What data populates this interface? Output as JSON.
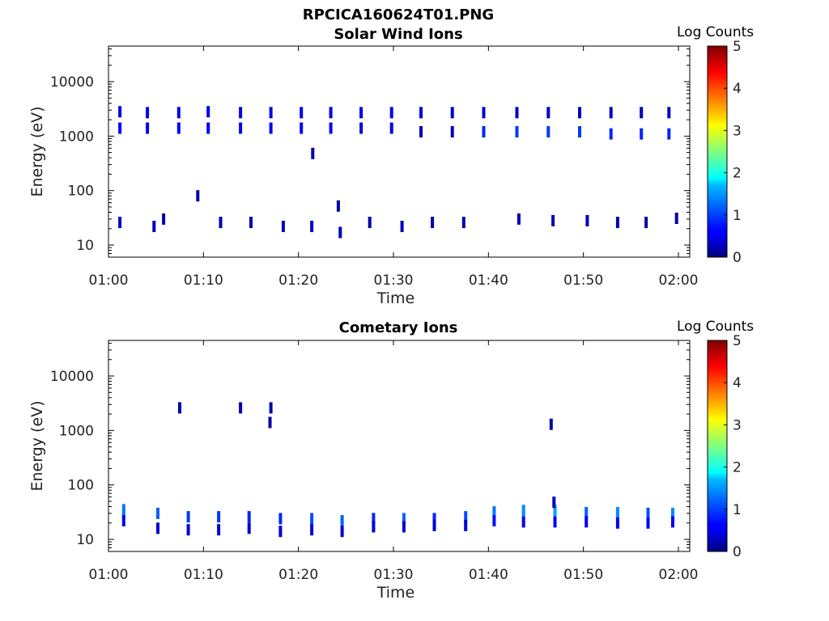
{
  "figure": {
    "title": "RPCICA160624T01.PNG"
  },
  "colorbar": {
    "label": "Log Counts",
    "range": [
      0,
      5
    ],
    "ticks": [
      "0",
      "1",
      "2",
      "3",
      "4",
      "5"
    ],
    "colormap": "jet"
  },
  "chart_data": [
    {
      "type": "heatmap",
      "title": "Solar Wind Ions",
      "xlabel": "Time",
      "ylabel": "Energy (eV)",
      "yscale": "log",
      "xlim": [
        "01:00",
        "02:00"
      ],
      "ylim": [
        6,
        45000
      ],
      "xticks": [
        "01:00",
        "01:10",
        "01:20",
        "01:30",
        "01:40",
        "01:50",
        "02:00"
      ],
      "yticks": [
        "10",
        "100",
        "1000",
        "10000"
      ],
      "colorbar": {
        "label": "Log Counts",
        "range": [
          0,
          5
        ]
      },
      "points": [
        {
          "t": 1.2,
          "e": 2800,
          "v": 0.5
        },
        {
          "t": 1.2,
          "e": 1400,
          "v": 0.6
        },
        {
          "t": 4.1,
          "e": 2700,
          "v": 0.5
        },
        {
          "t": 4.1,
          "e": 1400,
          "v": 0.6
        },
        {
          "t": 7.4,
          "e": 2700,
          "v": 0.5
        },
        {
          "t": 7.4,
          "e": 1400,
          "v": 0.6
        },
        {
          "t": 10.5,
          "e": 2800,
          "v": 0.5
        },
        {
          "t": 10.5,
          "e": 1400,
          "v": 0.6
        },
        {
          "t": 13.9,
          "e": 2700,
          "v": 0.5
        },
        {
          "t": 13.9,
          "e": 1400,
          "v": 0.6
        },
        {
          "t": 17.1,
          "e": 2700,
          "v": 0.5
        },
        {
          "t": 17.1,
          "e": 1400,
          "v": 0.6
        },
        {
          "t": 20.3,
          "e": 2700,
          "v": 0.5
        },
        {
          "t": 20.3,
          "e": 1400,
          "v": 0.6
        },
        {
          "t": 23.4,
          "e": 2700,
          "v": 0.5
        },
        {
          "t": 23.4,
          "e": 1400,
          "v": 0.6
        },
        {
          "t": 26.6,
          "e": 2700,
          "v": 0.5
        },
        {
          "t": 26.6,
          "e": 1400,
          "v": 0.5
        },
        {
          "t": 29.8,
          "e": 2700,
          "v": 0.5
        },
        {
          "t": 29.8,
          "e": 1400,
          "v": 0.5
        },
        {
          "t": 32.9,
          "e": 2700,
          "v": 0.4
        },
        {
          "t": 32.9,
          "e": 1200,
          "v": 0.3
        },
        {
          "t": 36.2,
          "e": 2700,
          "v": 0.4
        },
        {
          "t": 36.2,
          "e": 1200,
          "v": 0.3
        },
        {
          "t": 39.5,
          "e": 2700,
          "v": 0.4
        },
        {
          "t": 39.5,
          "e": 1200,
          "v": 0.8
        },
        {
          "t": 43.0,
          "e": 2700,
          "v": 0.4
        },
        {
          "t": 43.0,
          "e": 1200,
          "v": 0.9
        },
        {
          "t": 46.3,
          "e": 2700,
          "v": 0.4
        },
        {
          "t": 46.3,
          "e": 1200,
          "v": 0.9
        },
        {
          "t": 49.6,
          "e": 2700,
          "v": 0.3
        },
        {
          "t": 49.6,
          "e": 1200,
          "v": 0.9
        },
        {
          "t": 52.9,
          "e": 2700,
          "v": 0.3
        },
        {
          "t": 52.9,
          "e": 1100,
          "v": 0.8
        },
        {
          "t": 56.1,
          "e": 2700,
          "v": 0.3
        },
        {
          "t": 56.1,
          "e": 1100,
          "v": 0.8
        },
        {
          "t": 59.0,
          "e": 2700,
          "v": 0.3
        },
        {
          "t": 59.0,
          "e": 1100,
          "v": 0.8
        },
        {
          "t": 21.5,
          "e": 480,
          "v": 0.2
        },
        {
          "t": 9.4,
          "e": 80,
          "v": 0.2
        },
        {
          "t": 24.2,
          "e": 52,
          "v": 0.2
        },
        {
          "t": 1.2,
          "e": 26,
          "v": 0.3
        },
        {
          "t": 4.8,
          "e": 22,
          "v": 0.3
        },
        {
          "t": 5.8,
          "e": 30,
          "v": 0.2
        },
        {
          "t": 11.8,
          "e": 26,
          "v": 0.2
        },
        {
          "t": 15.0,
          "e": 26,
          "v": 0.2
        },
        {
          "t": 18.4,
          "e": 22,
          "v": 0.3
        },
        {
          "t": 21.4,
          "e": 22,
          "v": 0.4
        },
        {
          "t": 24.4,
          "e": 17,
          "v": 0.3
        },
        {
          "t": 27.5,
          "e": 26,
          "v": 0.2
        },
        {
          "t": 30.9,
          "e": 22,
          "v": 0.3
        },
        {
          "t": 34.1,
          "e": 26,
          "v": 0.2
        },
        {
          "t": 37.4,
          "e": 26,
          "v": 0.2
        },
        {
          "t": 43.2,
          "e": 30,
          "v": 0.3
        },
        {
          "t": 46.8,
          "e": 28,
          "v": 0.3
        },
        {
          "t": 50.4,
          "e": 28,
          "v": 0.3
        },
        {
          "t": 53.6,
          "e": 26,
          "v": 0.2
        },
        {
          "t": 56.6,
          "e": 26,
          "v": 0.2
        },
        {
          "t": 59.8,
          "e": 31,
          "v": 0.2
        }
      ]
    },
    {
      "type": "heatmap",
      "title": "Cometary Ions",
      "xlabel": "Time",
      "ylabel": "Energy (eV)",
      "yscale": "log",
      "xlim": [
        "01:00",
        "02:00"
      ],
      "ylim": [
        6,
        45000
      ],
      "xticks": [
        "01:00",
        "01:10",
        "01:20",
        "01:30",
        "01:40",
        "01:50",
        "02:00"
      ],
      "yticks": [
        "10",
        "100",
        "1000",
        "10000"
      ],
      "colorbar": {
        "label": "Log Counts",
        "range": [
          0,
          5
        ]
      },
      "points": [
        {
          "t": 7.5,
          "e": 2600,
          "v": 0.2
        },
        {
          "t": 13.9,
          "e": 2600,
          "v": 0.2
        },
        {
          "t": 17.1,
          "e": 2600,
          "v": 0.2
        },
        {
          "t": 17.0,
          "e": 1400,
          "v": 0.2
        },
        {
          "t": 46.6,
          "e": 1300,
          "v": 0.2
        },
        {
          "t": 1.6,
          "e": 35,
          "v": 1.2
        },
        {
          "t": 1.6,
          "e": 22,
          "v": 0.6
        },
        {
          "t": 5.2,
          "e": 30,
          "v": 1.1
        },
        {
          "t": 5.2,
          "e": 16,
          "v": 0.4
        },
        {
          "t": 8.4,
          "e": 26,
          "v": 0.9
        },
        {
          "t": 8.4,
          "e": 15,
          "v": 0.4
        },
        {
          "t": 11.6,
          "e": 26,
          "v": 0.9
        },
        {
          "t": 11.6,
          "e": 15,
          "v": 0.4
        },
        {
          "t": 14.8,
          "e": 26,
          "v": 0.8
        },
        {
          "t": 14.8,
          "e": 16,
          "v": 0.4
        },
        {
          "t": 18.1,
          "e": 24,
          "v": 0.8
        },
        {
          "t": 18.1,
          "e": 14,
          "v": 0.4
        },
        {
          "t": 21.4,
          "e": 24,
          "v": 1.0
        },
        {
          "t": 21.4,
          "e": 15,
          "v": 0.4
        },
        {
          "t": 24.6,
          "e": 22,
          "v": 1.1
        },
        {
          "t": 24.6,
          "e": 14,
          "v": 0.4
        },
        {
          "t": 27.9,
          "e": 24,
          "v": 0.8
        },
        {
          "t": 27.9,
          "e": 17,
          "v": 0.4
        },
        {
          "t": 31.1,
          "e": 24,
          "v": 1.1
        },
        {
          "t": 31.1,
          "e": 17,
          "v": 0.4
        },
        {
          "t": 34.3,
          "e": 24,
          "v": 0.8
        },
        {
          "t": 34.3,
          "e": 18,
          "v": 0.4
        },
        {
          "t": 37.6,
          "e": 26,
          "v": 1.0
        },
        {
          "t": 37.6,
          "e": 18,
          "v": 0.4
        },
        {
          "t": 40.6,
          "e": 32,
          "v": 1.2
        },
        {
          "t": 40.6,
          "e": 22,
          "v": 0.7
        },
        {
          "t": 43.7,
          "e": 34,
          "v": 1.3
        },
        {
          "t": 43.7,
          "e": 21,
          "v": 0.6
        },
        {
          "t": 47.0,
          "e": 34,
          "v": 1.4
        },
        {
          "t": 47.0,
          "e": 21,
          "v": 0.6
        },
        {
          "t": 50.3,
          "e": 31,
          "v": 1.1
        },
        {
          "t": 50.3,
          "e": 21,
          "v": 0.6
        },
        {
          "t": 53.6,
          "e": 31,
          "v": 1.3
        },
        {
          "t": 53.6,
          "e": 20,
          "v": 0.6
        },
        {
          "t": 56.8,
          "e": 30,
          "v": 1.0
        },
        {
          "t": 56.8,
          "e": 20,
          "v": 0.6
        },
        {
          "t": 59.4,
          "e": 30,
          "v": 1.3
        },
        {
          "t": 59.4,
          "e": 21,
          "v": 0.6
        },
        {
          "t": 46.9,
          "e": 48,
          "v": 0.3
        }
      ]
    }
  ]
}
